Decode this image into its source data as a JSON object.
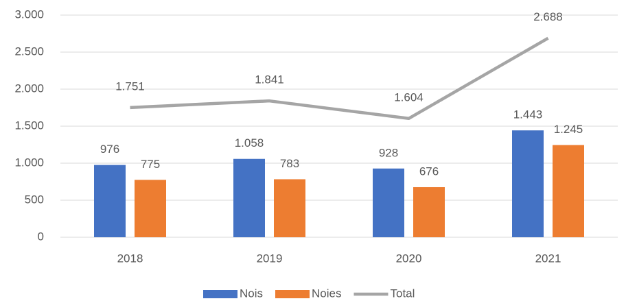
{
  "chart_data": {
    "type": "bar",
    "categories": [
      "2018",
      "2019",
      "2020",
      "2021"
    ],
    "series": [
      {
        "name": "Nois",
        "color": "#4472c4",
        "values": [
          976,
          1058,
          928,
          1443
        ],
        "value_labels": [
          "976",
          "1.058",
          "928",
          "1.443"
        ]
      },
      {
        "name": "Noies",
        "color": "#ed7d31",
        "values": [
          775,
          783,
          676,
          1245
        ],
        "value_labels": [
          "775",
          "783",
          "676",
          "1.245"
        ]
      },
      {
        "name": "Total",
        "type": "line",
        "color": "#a5a5a5",
        "values": [
          1751,
          1841,
          1604,
          2688
        ],
        "value_labels": [
          "1.751",
          "1.841",
          "1.604",
          "2.688"
        ]
      }
    ],
    "ylim": [
      0,
      3000
    ],
    "yticks": [
      0,
      500,
      {
        "value": 1000,
        "label": "1.000"
      },
      {
        "value": 1500,
        "label": "1.500"
      },
      {
        "value": 2000,
        "label": "2.000"
      },
      {
        "value": 2500,
        "label": "2.500"
      },
      {
        "value": 3000,
        "label": "3.000"
      }
    ],
    "grid": true,
    "legend": "bottom"
  }
}
